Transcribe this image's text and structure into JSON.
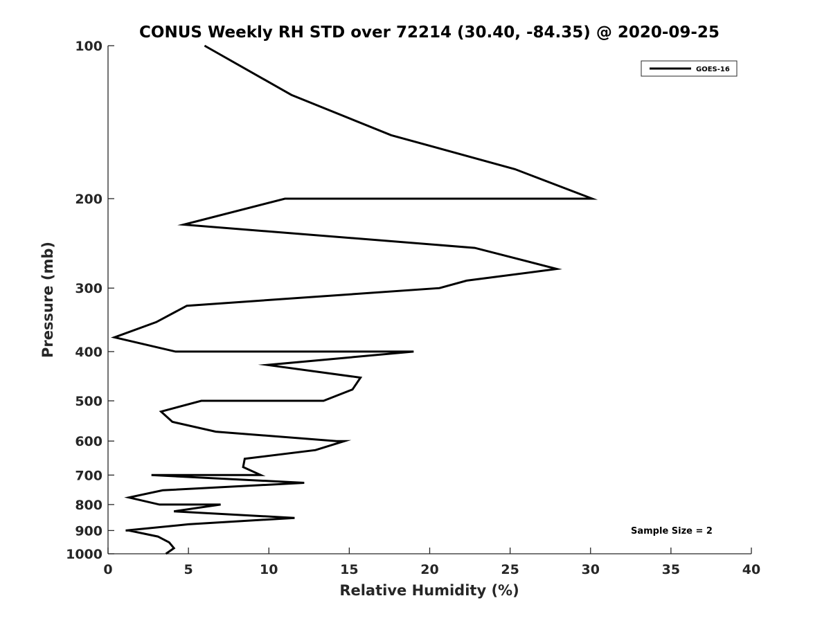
{
  "chart_data": {
    "type": "line",
    "title": "CONUS Weekly RH STD over 72214 (30.40, -84.35) @ 2020-09-25",
    "xlabel": "Relative Humidity (%)",
    "ylabel": "Pressure (mb)",
    "xlim": [
      0,
      40
    ],
    "ylim": [
      100,
      1000
    ],
    "y_scale": "log",
    "y_reversed": true,
    "x_ticks": [
      "0",
      "5",
      "10",
      "15",
      "20",
      "25",
      "30",
      "35",
      "40"
    ],
    "y_ticks": [
      "100",
      "200",
      "300",
      "400",
      "500",
      "600",
      "700",
      "800",
      "900",
      "1000"
    ],
    "grid": false,
    "legend_position": "top-right",
    "series": [
      {
        "name": "GOES-16",
        "color": "#000000",
        "x": [
          6.0,
          11.4,
          17.6,
          25.3,
          30.1,
          11.0,
          4.7,
          22.8,
          27.9,
          22.3,
          20.6,
          4.9,
          3.0,
          0.4,
          4.2,
          19.0,
          9.9,
          15.7,
          15.2,
          13.4,
          5.8,
          3.3,
          4.0,
          6.7,
          14.2,
          14.7,
          12.9,
          8.5,
          8.4,
          9.5,
          2.7,
          12.2,
          3.4,
          1.3,
          3.2,
          7.0,
          4.1,
          11.6,
          5.0,
          1.1,
          1.3,
          3.1,
          3.8,
          4.1,
          3.6
        ],
        "y": [
          100,
          125,
          150,
          175,
          200,
          200,
          225,
          250,
          275,
          290,
          300,
          325,
          350,
          375,
          400,
          400,
          425,
          450,
          475,
          500,
          500,
          525,
          550,
          575,
          600,
          600,
          625,
          650,
          675,
          700,
          700,
          725,
          750,
          775,
          800,
          800,
          825,
          850,
          875,
          900,
          900,
          925,
          950,
          975,
          1000
        ]
      }
    ]
  },
  "legend": {
    "label": "GOES-16"
  },
  "annotation": {
    "sample_size": "Sample Size = 2"
  }
}
